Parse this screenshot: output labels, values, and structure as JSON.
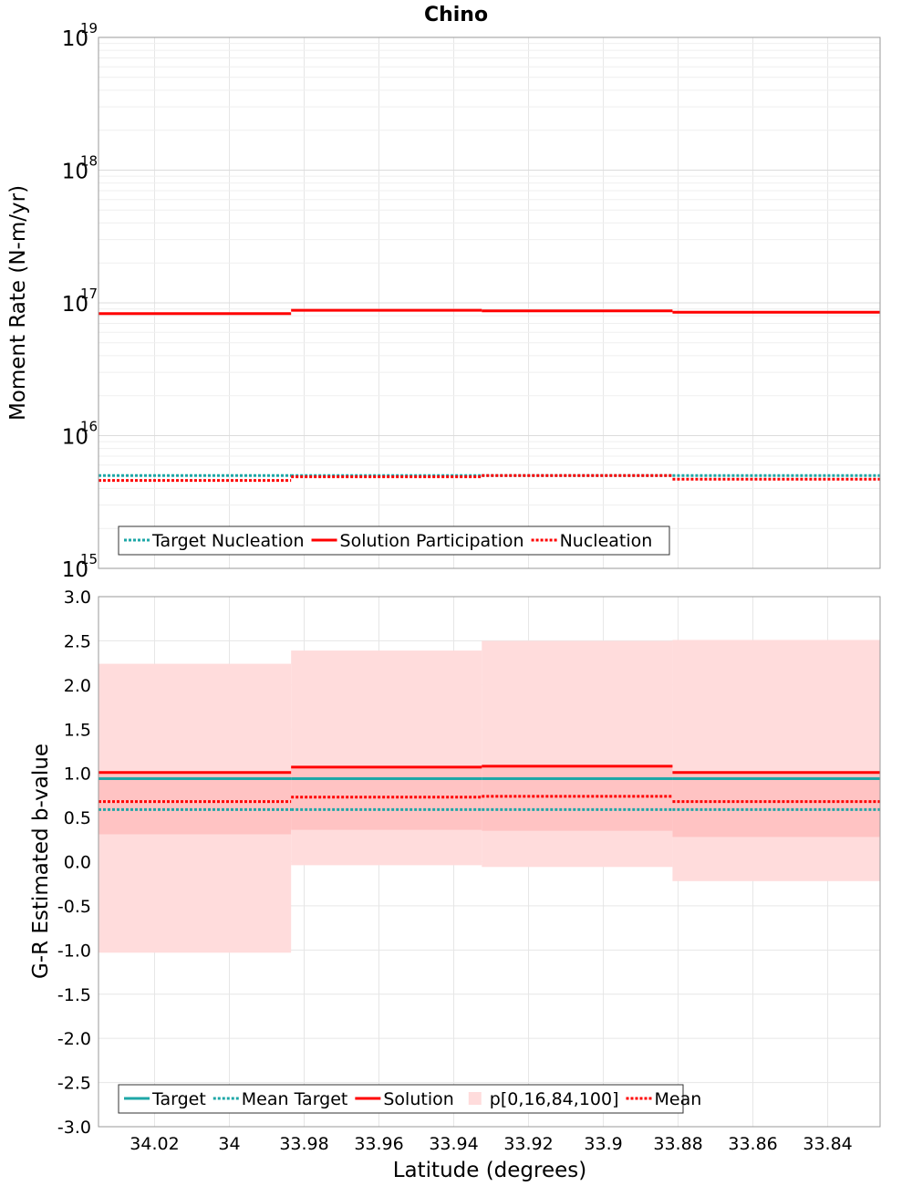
{
  "title": "Chino",
  "colors": {
    "solution": "#ff0000",
    "target": "#1ea7a7",
    "band_outer": "#ffdcdc",
    "band_inner": "#ffc3c3",
    "grid": "#e6e6e6",
    "frame": "#9a9a9a"
  },
  "chart_data": [
    {
      "type": "line",
      "title": "Chino",
      "xlabel": "",
      "ylabel": "Moment Rate (N-m/yr)",
      "yscale": "log",
      "ylim_exponents": [
        15,
        19
      ],
      "ytick_base": "10",
      "ytick_exponents": [
        "15",
        "16",
        "17",
        "18",
        "19"
      ],
      "xlim": [
        34.035,
        33.826
      ],
      "segment_edges": [
        34.035,
        33.9835,
        33.9325,
        33.8815,
        33.826
      ],
      "series": [
        {
          "name": "Target Nucleation",
          "style": "dotted",
          "color": "target",
          "values": [
            5000000000000000.0,
            5000000000000000.0,
            5000000000000000.0,
            5000000000000000.0
          ]
        },
        {
          "name": "Solution Participation",
          "style": "solid",
          "color": "solution",
          "values": [
            8.3e+16,
            8.8e+16,
            8.7e+16,
            8.5e+16
          ]
        },
        {
          "name": "Nucleation",
          "style": "dotted",
          "color": "solution",
          "values": [
            4600000000000000.0,
            4900000000000000.0,
            5000000000000000.0,
            4700000000000000.0
          ]
        }
      ],
      "legend": [
        "Target Nucleation",
        "Solution Participation",
        "Nucleation"
      ],
      "legend_position": "bottom-left",
      "grid": true
    },
    {
      "type": "line",
      "title": "",
      "xlabel": "Latitude (degrees)",
      "ylabel": "G-R Estimated b-value",
      "ylim": [
        -3.0,
        3.0
      ],
      "yticks": [
        "-3.0",
        "-2.5",
        "-2.0",
        "-1.5",
        "-1.0",
        "-0.5",
        "0.0",
        "0.5",
        "1.0",
        "1.5",
        "2.0",
        "2.5",
        "3.0"
      ],
      "xlim": [
        34.035,
        33.826
      ],
      "xticks": [
        "34.02",
        "34",
        "33.98",
        "33.96",
        "33.94",
        "33.92",
        "33.9",
        "33.88",
        "33.86",
        "33.84"
      ],
      "segment_edges": [
        34.035,
        33.9835,
        33.9325,
        33.8815,
        33.826
      ],
      "series": [
        {
          "name": "Target",
          "style": "solid",
          "color": "target",
          "values": [
            0.94,
            0.94,
            0.94,
            0.94
          ]
        },
        {
          "name": "Mean Target",
          "style": "dotted",
          "color": "target",
          "values": [
            0.59,
            0.59,
            0.59,
            0.59
          ]
        },
        {
          "name": "Solution",
          "style": "solid",
          "color": "solution",
          "values": [
            1.01,
            1.07,
            1.08,
            1.01
          ]
        },
        {
          "name": "p[0,16,84,100]",
          "style": "band",
          "p0": [
            -1.03,
            -0.04,
            -0.06,
            -0.22
          ],
          "p16": [
            0.31,
            0.36,
            0.35,
            0.28
          ],
          "p84": [
            0.99,
            1.05,
            1.06,
            0.99
          ],
          "p100": [
            2.24,
            2.39,
            2.5,
            2.51
          ]
        },
        {
          "name": "Mean",
          "style": "dotted",
          "color": "solution",
          "values": [
            0.68,
            0.73,
            0.74,
            0.68
          ]
        }
      ],
      "legend": [
        "Target",
        "Mean Target",
        "Solution",
        "p[0,16,84,100]",
        "Mean"
      ],
      "legend_position": "bottom-left",
      "grid": true
    }
  ]
}
